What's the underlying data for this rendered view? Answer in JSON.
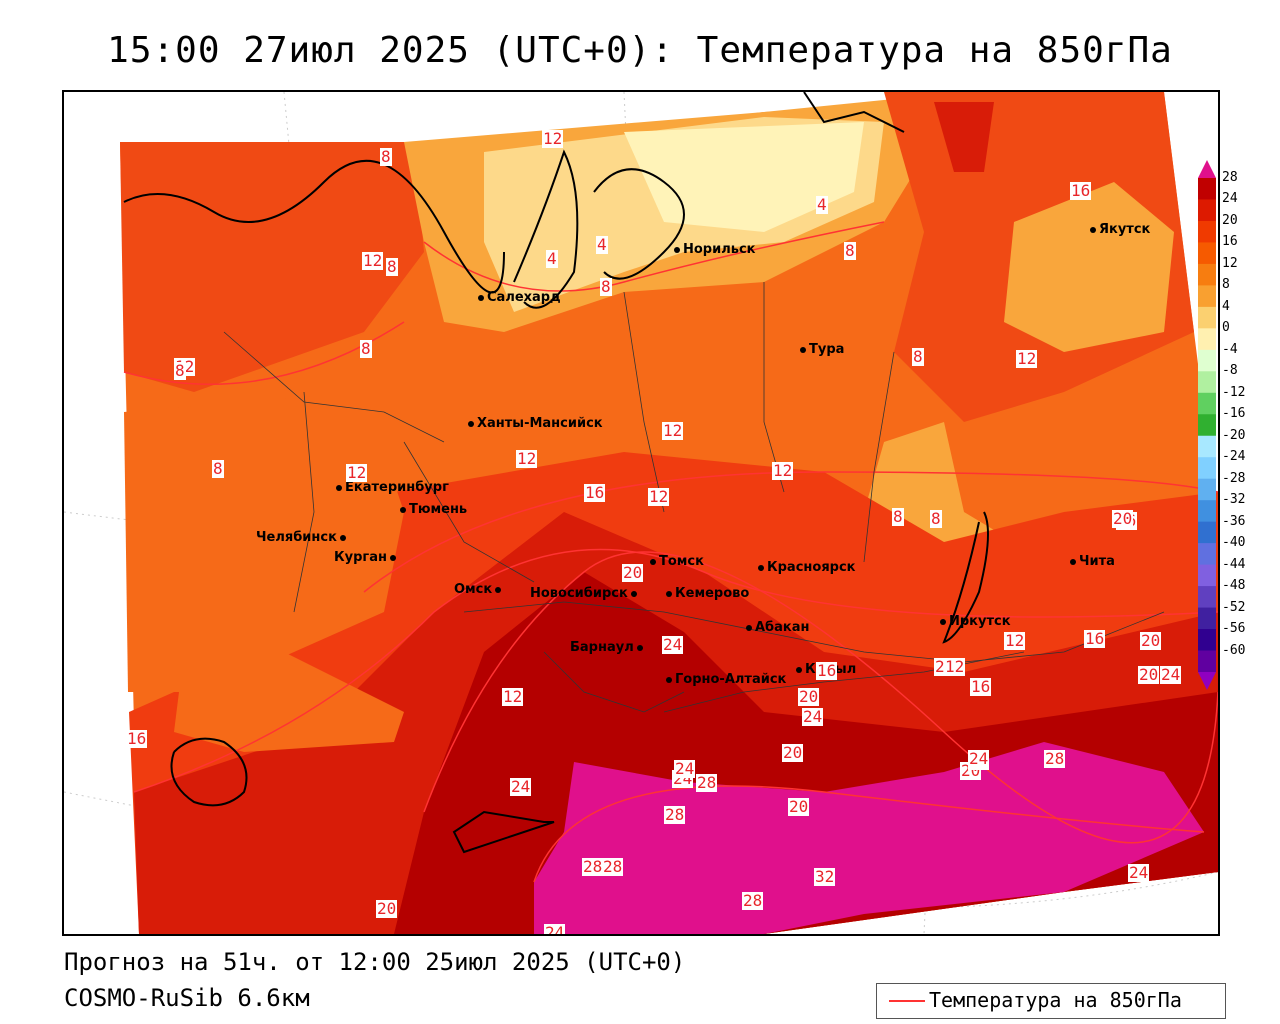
{
  "title": "15:00 27июл 2025 (UTC+0): Температура на 850гПа",
  "forecast_text": "Прогноз на 51ч. от 12:00 25июл 2025 (UTC+0)",
  "model_text": "COSMO-RuSib 6.6км",
  "legend_label": "Температура на 850гПа",
  "colorbar": {
    "labels": [
      "28",
      "24",
      "20",
      "16",
      "12",
      "8",
      "4",
      "0",
      "-4",
      "-8",
      "-12",
      "-16",
      "-20",
      "-24",
      "-28",
      "-32",
      "-36",
      "-40",
      "-44",
      "-48",
      "-52",
      "-56",
      "-60"
    ],
    "colors": [
      "#c00000",
      "#dd1a00",
      "#f03a00",
      "#f65a00",
      "#f77d10",
      "#f9a030",
      "#fbd070",
      "#fff0b0",
      "#dfffd0",
      "#b0f0a0",
      "#60d060",
      "#30b030",
      "#a8e8ff",
      "#80d0ff",
      "#60b0f0",
      "#4090e0",
      "#3070d0",
      "#6070e0",
      "#8060e0",
      "#6040c0",
      "#4020a0",
      "#300090",
      "#6000a0"
    ],
    "top_color": "#e0108c",
    "bottom_color": "#9000c0"
  },
  "cities": [
    {
      "name": "Норильск"
    },
    {
      "name": "Якутск"
    },
    {
      "name": "Салехард"
    },
    {
      "name": "Тура"
    },
    {
      "name": "Ханты-Мансийск"
    },
    {
      "name": "Екатеринбург"
    },
    {
      "name": "Тюмень"
    },
    {
      "name": "Челябинск"
    },
    {
      "name": "Курган"
    },
    {
      "name": "Омск"
    },
    {
      "name": "Новосибирск"
    },
    {
      "name": "Томск"
    },
    {
      "name": "Кемерово"
    },
    {
      "name": "Красноярск"
    },
    {
      "name": "Барнаул"
    },
    {
      "name": "Абакан"
    },
    {
      "name": "Горно-Алтайск"
    },
    {
      "name": "Кызыл"
    },
    {
      "name": "Иркутск"
    },
    {
      "name": "Чита"
    }
  ],
  "isolines": [
    "8",
    "12",
    "4",
    "4",
    "8",
    "8",
    "4",
    "8",
    "12",
    "8",
    "12",
    "8",
    "12",
    "12",
    "12",
    "16",
    "12",
    "12",
    "16",
    "8",
    "12",
    "8",
    "8",
    "8",
    "12",
    "16",
    "20",
    "20",
    "24",
    "12",
    "20",
    "16",
    "20",
    "24",
    "20",
    "24",
    "12",
    "16",
    "20",
    "16",
    "20",
    "24",
    "28",
    "24",
    "20",
    "32",
    "20",
    "24",
    "28",
    "24",
    "28",
    "16",
    "24",
    "28",
    "28",
    "32",
    "24",
    "20",
    "24",
    "28"
  ],
  "colors": {
    "iso_line": "#ff3333",
    "warm_28": "#e0108c",
    "hot_24": "#b40000",
    "c20": "#d81c08",
    "c16": "#f03c10",
    "c12": "#f66a18",
    "c8": "#f9a63c",
    "c4": "#fdd98a",
    "c0": "#fff3b8"
  }
}
